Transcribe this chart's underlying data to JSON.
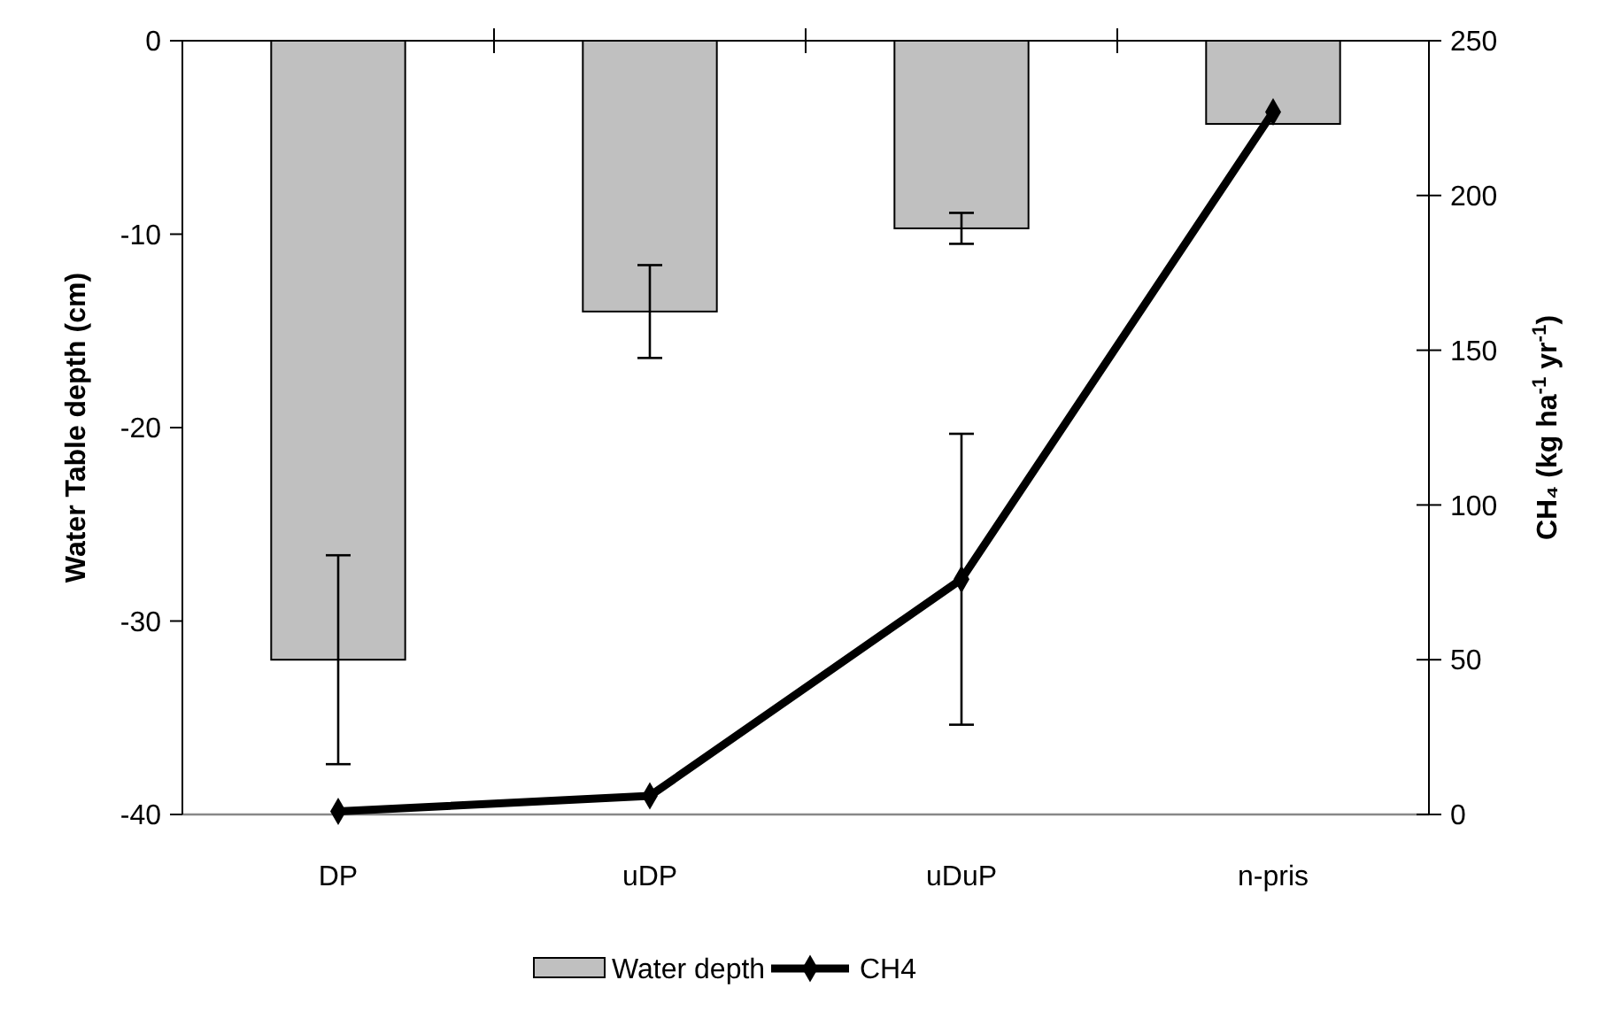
{
  "chart_data": {
    "type": "bar",
    "categories": [
      "DP",
      "uDP",
      "uDuP",
      "n-pris"
    ],
    "series": [
      {
        "name": "Water depth",
        "color": "#c0c0c0",
        "values": [
          -32,
          -14,
          -9.7,
          -4.3
        ],
        "errors": [
          5.4,
          2.4,
          0.8,
          null
        ]
      },
      {
        "name": "CH4",
        "type": "line",
        "axis": "y2",
        "color": "#000000",
        "values": [
          1,
          6,
          76,
          227
        ],
        "errors": [
          null,
          null,
          47,
          null
        ],
        "marker": "diamond"
      }
    ],
    "ylabel": "Water Table depth (cm)",
    "y2label": "CH₄ (kg ha$^{-1}$ yr$^{-1}$)",
    "ylim": [
      -40,
      0
    ],
    "yticks": [
      -40,
      -30,
      -20,
      -10,
      0
    ],
    "y2lim": [
      0,
      250
    ],
    "y2ticks": [
      0,
      50,
      100,
      150,
      200,
      250
    ],
    "grid": false,
    "legend": "bottom"
  }
}
